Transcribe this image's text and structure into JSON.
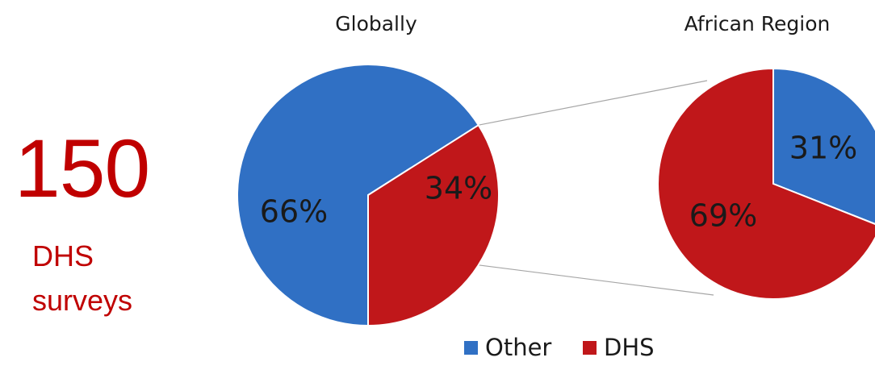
{
  "headline": {
    "number": "150",
    "line1": "DHS",
    "line2": "surveys"
  },
  "colors": {
    "other": "#3070c4",
    "dhs": "#c0171a",
    "headline": "#c00000",
    "connector": "#a6a6a6"
  },
  "chart_data": [
    {
      "type": "pie",
      "title": "Globally",
      "series": [
        {
          "values": [
            66,
            34
          ]
        }
      ],
      "categories": [
        "Other",
        "DHS"
      ],
      "labels": [
        "66%",
        "34%"
      ]
    },
    {
      "type": "pie",
      "title": "African Region",
      "series": [
        {
          "values": [
            31,
            69
          ]
        }
      ],
      "categories": [
        "Other",
        "DHS"
      ],
      "labels": [
        "31%",
        "69%"
      ]
    }
  ],
  "legend": {
    "placement": "bottom",
    "items": [
      {
        "label": "Other",
        "color": "#3070c4"
      },
      {
        "label": "DHS",
        "color": "#c0171a"
      }
    ]
  }
}
